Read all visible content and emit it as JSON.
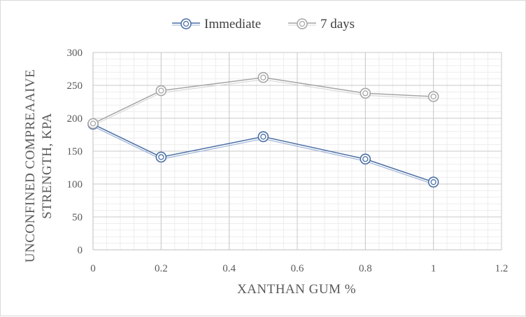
{
  "chart_data": {
    "type": "line",
    "title": "",
    "xlabel": "XANTHAN GUM %",
    "ylabel_lines": [
      "UNCONFINED COMPREAAIVE",
      "STRENGTH, KPA"
    ],
    "xlim": [
      0,
      1.2
    ],
    "ylim": [
      0,
      300
    ],
    "x_ticks": [
      0,
      0.2,
      0.4,
      0.6,
      0.8,
      1,
      1.2
    ],
    "x_tick_labels": [
      "0",
      "0.2",
      "0.4",
      "0.6",
      "0.8",
      "1",
      "1.2"
    ],
    "y_ticks": [
      0,
      50,
      100,
      150,
      200,
      250,
      300
    ],
    "y_tick_labels": [
      "0",
      "50",
      "100",
      "150",
      "200",
      "250",
      "300"
    ],
    "grid": true,
    "legend_position": "top",
    "series": [
      {
        "name": "Immediate",
        "color": "#4a6fa5",
        "x": [
          0,
          0.2,
          0.5,
          0.8,
          1
        ],
        "y": [
          191,
          141,
          172,
          138,
          103
        ]
      },
      {
        "name": "7 days",
        "color": "#a6a6a6",
        "x": [
          0,
          0.2,
          0.5,
          0.8,
          1
        ],
        "y": [
          192,
          242,
          262,
          238,
          233
        ]
      }
    ]
  }
}
